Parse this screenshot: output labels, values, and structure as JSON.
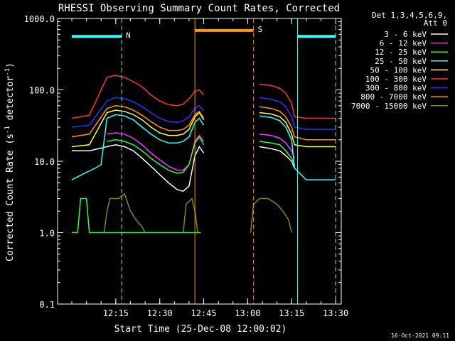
{
  "chart_data": {
    "type": "line",
    "title": "RHESSI Observing Summary Count Rates, Corrected",
    "xlabel": "Start Time (25-Dec-08 12:00:02)",
    "ylabel_main": "Corrected Count Rate (s",
    "ylabel_sup1": "-1",
    "ylabel_mid": " detector",
    "ylabel_sup2": "-1",
    "ylabel_end": ")",
    "yscale": "log",
    "ylim": [
      0.1,
      1000
    ],
    "xlim_min": [
      0,
      90
    ],
    "y_ticks": [
      {
        "v": 1000,
        "label": "1000.0"
      },
      {
        "v": 100,
        "label": "100.0"
      },
      {
        "v": 10,
        "label": "10.0"
      },
      {
        "v": 1,
        "label": "1.0"
      },
      {
        "v": 0.1,
        "label": "0.1"
      }
    ],
    "x_ticks": [
      {
        "m": 15,
        "label": "12:15"
      },
      {
        "m": 30,
        "label": "12:30"
      },
      {
        "m": 45,
        "label": "12:45"
      },
      {
        "m": 60,
        "label": "13:00"
      },
      {
        "m": 75,
        "label": "13:15"
      },
      {
        "m": 90,
        "label": "13:30"
      }
    ],
    "legend_header": [
      "Det 1,3,4,5,6,9,",
      "Att 0"
    ],
    "legend_position": "outside-right",
    "timestamp": "16-Oct-2021 09:11",
    "series": [
      {
        "name": "3 - 6 keV",
        "color": "#ffffff",
        "points": [
          [
            0,
            14
          ],
          [
            6,
            14
          ],
          [
            12,
            16
          ],
          [
            15,
            17
          ],
          [
            18,
            16
          ],
          [
            21,
            14
          ],
          [
            24,
            11
          ],
          [
            27,
            8.5
          ],
          [
            30,
            6.5
          ],
          [
            33,
            5
          ],
          [
            36,
            4
          ],
          [
            38,
            3.8
          ],
          [
            40,
            4.5
          ],
          [
            42,
            12
          ],
          [
            43.5,
            16
          ],
          [
            45,
            13
          ],
          [
            61,
            null
          ],
          [
            64,
            16
          ],
          [
            68,
            15
          ],
          [
            71,
            14
          ],
          [
            73,
            12
          ],
          [
            75,
            10
          ],
          [
            76,
            8
          ]
        ]
      },
      {
        "name": "6 - 12 keV",
        "color": "#ff33ff",
        "points": [
          [
            0,
            null
          ],
          [
            12,
            24
          ],
          [
            15,
            25
          ],
          [
            18,
            24
          ],
          [
            21,
            21
          ],
          [
            24,
            17
          ],
          [
            27,
            13
          ],
          [
            30,
            10.5
          ],
          [
            33,
            8.5
          ],
          [
            36,
            7.5
          ],
          [
            38,
            7.5
          ],
          [
            40,
            9
          ],
          [
            42,
            19
          ],
          [
            43.5,
            23
          ],
          [
            45,
            19
          ],
          [
            61,
            null
          ],
          [
            64,
            24
          ],
          [
            68,
            23
          ],
          [
            71,
            21
          ],
          [
            73,
            18
          ],
          [
            75,
            14
          ],
          [
            76,
            11
          ]
        ]
      },
      {
        "name": "12 - 25 keV",
        "color": "#33ff33",
        "points": [
          [
            0,
            null
          ],
          [
            12,
            19
          ],
          [
            15,
            20
          ],
          [
            18,
            19
          ],
          [
            21,
            17
          ],
          [
            24,
            14
          ],
          [
            27,
            11
          ],
          [
            30,
            9
          ],
          [
            33,
            7.5
          ],
          [
            36,
            6.8
          ],
          [
            38,
            7
          ],
          [
            40,
            9
          ],
          [
            42,
            18
          ],
          [
            43.5,
            22
          ],
          [
            45,
            17
          ],
          [
            61,
            null
          ],
          [
            64,
            19
          ],
          [
            68,
            18
          ],
          [
            71,
            17
          ],
          [
            73,
            14
          ],
          [
            75,
            11
          ],
          [
            76,
            9
          ]
        ]
      },
      {
        "name": "25 - 50 keV",
        "color": "#33ffff",
        "points": [
          [
            0,
            5.5
          ],
          [
            5,
            7
          ],
          [
            8,
            8
          ],
          [
            10,
            9
          ],
          [
            12,
            40
          ],
          [
            15,
            45
          ],
          [
            18,
            43
          ],
          [
            21,
            38
          ],
          [
            24,
            30
          ],
          [
            27,
            24
          ],
          [
            30,
            20
          ],
          [
            33,
            18
          ],
          [
            36,
            18
          ],
          [
            38,
            19
          ],
          [
            40,
            22
          ],
          [
            42,
            35
          ],
          [
            43.5,
            40
          ],
          [
            45,
            32
          ],
          [
            61,
            null
          ],
          [
            64,
            43
          ],
          [
            68,
            41
          ],
          [
            71,
            37
          ],
          [
            73,
            30
          ],
          [
            75,
            20
          ],
          [
            76,
            8
          ],
          [
            80,
            5.5
          ],
          [
            90,
            5.5
          ]
        ]
      },
      {
        "name": "50 - 100 keV",
        "color": "#ffff33",
        "points": [
          [
            0,
            16
          ],
          [
            6,
            17
          ],
          [
            12,
            48
          ],
          [
            15,
            52
          ],
          [
            18,
            50
          ],
          [
            21,
            45
          ],
          [
            24,
            38
          ],
          [
            27,
            30
          ],
          [
            30,
            25
          ],
          [
            33,
            23
          ],
          [
            36,
            23
          ],
          [
            38,
            24
          ],
          [
            40,
            28
          ],
          [
            42,
            42
          ],
          [
            43.5,
            48
          ],
          [
            45,
            38
          ],
          [
            61,
            null
          ],
          [
            64,
            48
          ],
          [
            68,
            46
          ],
          [
            71,
            42
          ],
          [
            73,
            35
          ],
          [
            75,
            24
          ],
          [
            76,
            17
          ],
          [
            80,
            16
          ],
          [
            90,
            16
          ]
        ]
      },
      {
        "name": "100 - 300 keV",
        "color": "#ff3333",
        "points": [
          [
            0,
            40
          ],
          [
            6,
            44
          ],
          [
            12,
            150
          ],
          [
            15,
            160
          ],
          [
            18,
            150
          ],
          [
            21,
            130
          ],
          [
            24,
            110
          ],
          [
            27,
            85
          ],
          [
            30,
            70
          ],
          [
            33,
            62
          ],
          [
            36,
            60
          ],
          [
            38,
            63
          ],
          [
            40,
            75
          ],
          [
            42,
            95
          ],
          [
            43.5,
            100
          ],
          [
            45,
            85
          ],
          [
            61,
            null
          ],
          [
            64,
            120
          ],
          [
            68,
            115
          ],
          [
            71,
            105
          ],
          [
            73,
            90
          ],
          [
            75,
            65
          ],
          [
            76,
            42
          ],
          [
            80,
            40
          ],
          [
            90,
            40
          ]
        ]
      },
      {
        "name": "300 - 800 keV",
        "color": "#3333ff",
        "points": [
          [
            0,
            30
          ],
          [
            6,
            32
          ],
          [
            12,
            70
          ],
          [
            15,
            78
          ],
          [
            18,
            75
          ],
          [
            21,
            68
          ],
          [
            24,
            58
          ],
          [
            27,
            48
          ],
          [
            30,
            40
          ],
          [
            33,
            36
          ],
          [
            36,
            35
          ],
          [
            38,
            37
          ],
          [
            40,
            42
          ],
          [
            42,
            55
          ],
          [
            43.5,
            60
          ],
          [
            45,
            50
          ],
          [
            61,
            null
          ],
          [
            64,
            78
          ],
          [
            68,
            74
          ],
          [
            71,
            68
          ],
          [
            73,
            58
          ],
          [
            75,
            42
          ],
          [
            76,
            30
          ],
          [
            80,
            28
          ],
          [
            90,
            28
          ]
        ]
      },
      {
        "name": "800 - 7000 keV",
        "color": "#ff9900",
        "points": [
          [
            0,
            22
          ],
          [
            6,
            24
          ],
          [
            12,
            55
          ],
          [
            15,
            60
          ],
          [
            18,
            58
          ],
          [
            21,
            52
          ],
          [
            24,
            44
          ],
          [
            27,
            36
          ],
          [
            30,
            30
          ],
          [
            33,
            27
          ],
          [
            36,
            27
          ],
          [
            38,
            28
          ],
          [
            40,
            32
          ],
          [
            42,
            45
          ],
          [
            43.5,
            50
          ],
          [
            45,
            40
          ],
          [
            61,
            null
          ],
          [
            64,
            58
          ],
          [
            68,
            55
          ],
          [
            71,
            50
          ],
          [
            73,
            42
          ],
          [
            75,
            30
          ],
          [
            76,
            22
          ],
          [
            80,
            20
          ],
          [
            90,
            20
          ]
        ]
      },
      {
        "name": "7000 - 15000 keV",
        "color": "#888800",
        "points": [
          [
            0,
            null
          ],
          [
            11,
            1
          ],
          [
            12,
            2
          ],
          [
            13,
            3
          ],
          [
            16,
            3
          ],
          [
            18,
            3.5
          ],
          [
            20,
            2
          ],
          [
            22,
            1.5
          ],
          [
            24,
            1.2
          ],
          [
            25,
            1
          ],
          [
            28,
            null
          ],
          [
            37,
            null
          ],
          [
            38,
            1
          ],
          [
            39,
            2.5
          ],
          [
            41,
            3
          ],
          [
            42,
            2
          ],
          [
            43,
            1
          ],
          [
            44,
            null
          ],
          [
            60,
            null
          ],
          [
            61,
            1
          ],
          [
            62,
            2.5
          ],
          [
            64,
            3
          ],
          [
            67,
            3
          ],
          [
            70,
            2.5
          ],
          [
            72,
            2
          ],
          [
            74,
            1.5
          ],
          [
            75,
            1
          ],
          [
            76,
            null
          ]
        ]
      }
    ],
    "lower_series": {
      "name": "low",
      "color": "#33ff33",
      "points": [
        [
          0,
          1
        ],
        [
          2,
          1
        ],
        [
          3,
          3
        ],
        [
          5,
          3
        ],
        [
          6,
          1
        ],
        [
          10,
          1
        ],
        [
          11,
          1
        ],
        [
          43,
          1
        ],
        [
          44,
          1
        ]
      ]
    },
    "bars": [
      {
        "label": "N",
        "color": "#33ffff",
        "y": 560,
        "x0": 0,
        "x1": 17
      },
      {
        "label": "",
        "color": "#33ffff",
        "y": 560,
        "x0": 77,
        "x1": 90
      },
      {
        "label": "S",
        "color": "#ff9900",
        "y": 680,
        "x0": 42,
        "x1": 62
      }
    ],
    "vlines": [
      {
        "m": 17,
        "color": "#33ffff",
        "dash": true
      },
      {
        "m": 77,
        "color": "#33ffff",
        "dash": false
      },
      {
        "m": 90,
        "color": "#33ffff",
        "dash": true
      },
      {
        "m": 42,
        "color": "#ff9900",
        "dash": false
      },
      {
        "m": 62,
        "color": "#ff9900",
        "dash": true
      }
    ]
  }
}
